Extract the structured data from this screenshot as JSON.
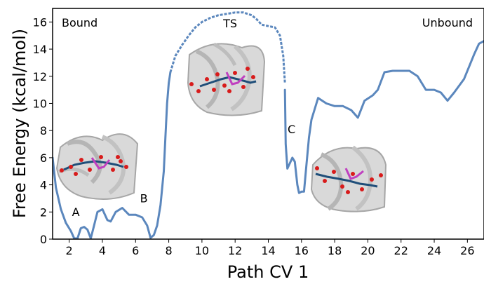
{
  "chart_data": {
    "type": "line",
    "title": "",
    "xlabel": "Path CV 1",
    "ylabel": "Free Energy (kcal/mol)",
    "xlim": [
      1,
      27
    ],
    "ylim": [
      0,
      17
    ],
    "xticks": [
      2,
      4,
      6,
      8,
      10,
      12,
      14,
      16,
      18,
      20,
      22,
      24,
      26
    ],
    "yticks": [
      0,
      2,
      4,
      6,
      8,
      10,
      12,
      14,
      16
    ],
    "line_color": "#5b87bd",
    "segments": [
      {
        "style": "solid",
        "points": [
          [
            1.0,
            6.0
          ],
          [
            1.2,
            3.8
          ],
          [
            1.5,
            2.2
          ],
          [
            1.8,
            1.2
          ],
          [
            2.1,
            0.6
          ],
          [
            2.3,
            0.05
          ],
          [
            2.5,
            0.05
          ],
          [
            2.7,
            0.8
          ],
          [
            2.9,
            0.9
          ],
          [
            3.1,
            0.7
          ],
          [
            3.3,
            0.05
          ],
          [
            3.5,
            1.0
          ],
          [
            3.7,
            2.0
          ],
          [
            4.0,
            2.2
          ],
          [
            4.3,
            1.4
          ],
          [
            4.5,
            1.3
          ],
          [
            4.8,
            2.0
          ],
          [
            5.2,
            2.3
          ],
          [
            5.6,
            1.8
          ],
          [
            6.0,
            1.8
          ],
          [
            6.4,
            1.6
          ],
          [
            6.7,
            1.0
          ],
          [
            6.9,
            0.1
          ],
          [
            7.1,
            0.3
          ],
          [
            7.3,
            1.0
          ],
          [
            7.5,
            2.5
          ],
          [
            7.7,
            5.0
          ],
          [
            7.8,
            7.5
          ],
          [
            7.9,
            10.0
          ],
          [
            8.0,
            11.5
          ],
          [
            8.1,
            12.3
          ]
        ]
      },
      {
        "style": "dashed",
        "points": [
          [
            8.1,
            12.3
          ],
          [
            8.4,
            13.5
          ],
          [
            8.8,
            14.3
          ],
          [
            9.2,
            15.0
          ],
          [
            9.6,
            15.6
          ],
          [
            10.0,
            16.0
          ],
          [
            10.5,
            16.3
          ],
          [
            11.0,
            16.5
          ],
          [
            11.5,
            16.6
          ],
          [
            12.0,
            16.7
          ],
          [
            12.5,
            16.7
          ],
          [
            13.0,
            16.5
          ],
          [
            13.3,
            16.2
          ],
          [
            13.6,
            15.8
          ],
          [
            14.0,
            15.7
          ],
          [
            14.4,
            15.6
          ],
          [
            14.7,
            15.0
          ],
          [
            14.9,
            13.5
          ],
          [
            15.0,
            11.5
          ]
        ]
      },
      {
        "style": "solid",
        "points": [
          [
            15.0,
            11.0
          ],
          [
            15.05,
            7.0
          ],
          [
            15.15,
            5.2
          ],
          [
            15.3,
            5.6
          ],
          [
            15.45,
            6.0
          ],
          [
            15.6,
            5.7
          ],
          [
            15.75,
            4.0
          ],
          [
            15.85,
            3.4
          ],
          [
            16.0,
            3.5
          ],
          [
            16.15,
            3.5
          ],
          [
            16.3,
            5.5
          ],
          [
            16.45,
            7.5
          ],
          [
            16.6,
            8.8
          ],
          [
            17.0,
            10.4
          ],
          [
            17.5,
            10.0
          ],
          [
            18.0,
            9.8
          ],
          [
            18.5,
            9.8
          ],
          [
            19.0,
            9.5
          ],
          [
            19.4,
            8.95
          ],
          [
            19.8,
            10.2
          ],
          [
            20.3,
            10.6
          ],
          [
            20.6,
            11.0
          ],
          [
            21.0,
            12.3
          ],
          [
            21.5,
            12.4
          ],
          [
            22.0,
            12.4
          ],
          [
            22.5,
            12.4
          ],
          [
            23.0,
            12.0
          ],
          [
            23.5,
            11.0
          ],
          [
            24.0,
            11.0
          ],
          [
            24.4,
            10.8
          ],
          [
            24.8,
            10.2
          ],
          [
            25.2,
            10.8
          ],
          [
            25.8,
            11.8
          ],
          [
            26.4,
            13.6
          ],
          [
            26.7,
            14.4
          ],
          [
            27.0,
            14.6
          ]
        ]
      }
    ],
    "annotations": [
      {
        "text": "A",
        "x": 2.4,
        "y": 1.7
      },
      {
        "text": "B",
        "x": 6.5,
        "y": 2.7
      },
      {
        "text": "C",
        "x": 15.4,
        "y": 7.8
      },
      {
        "text": "TS",
        "x": 11.7,
        "y": 15.6
      }
    ],
    "corner_labels": {
      "left": "Bound",
      "right": "Unbound"
    },
    "insets": [
      {
        "name": "bound-structure",
        "near": "A"
      },
      {
        "name": "transition-state-structure",
        "near": "TS"
      },
      {
        "name": "intermediate-structure",
        "near": "C"
      }
    ]
  }
}
